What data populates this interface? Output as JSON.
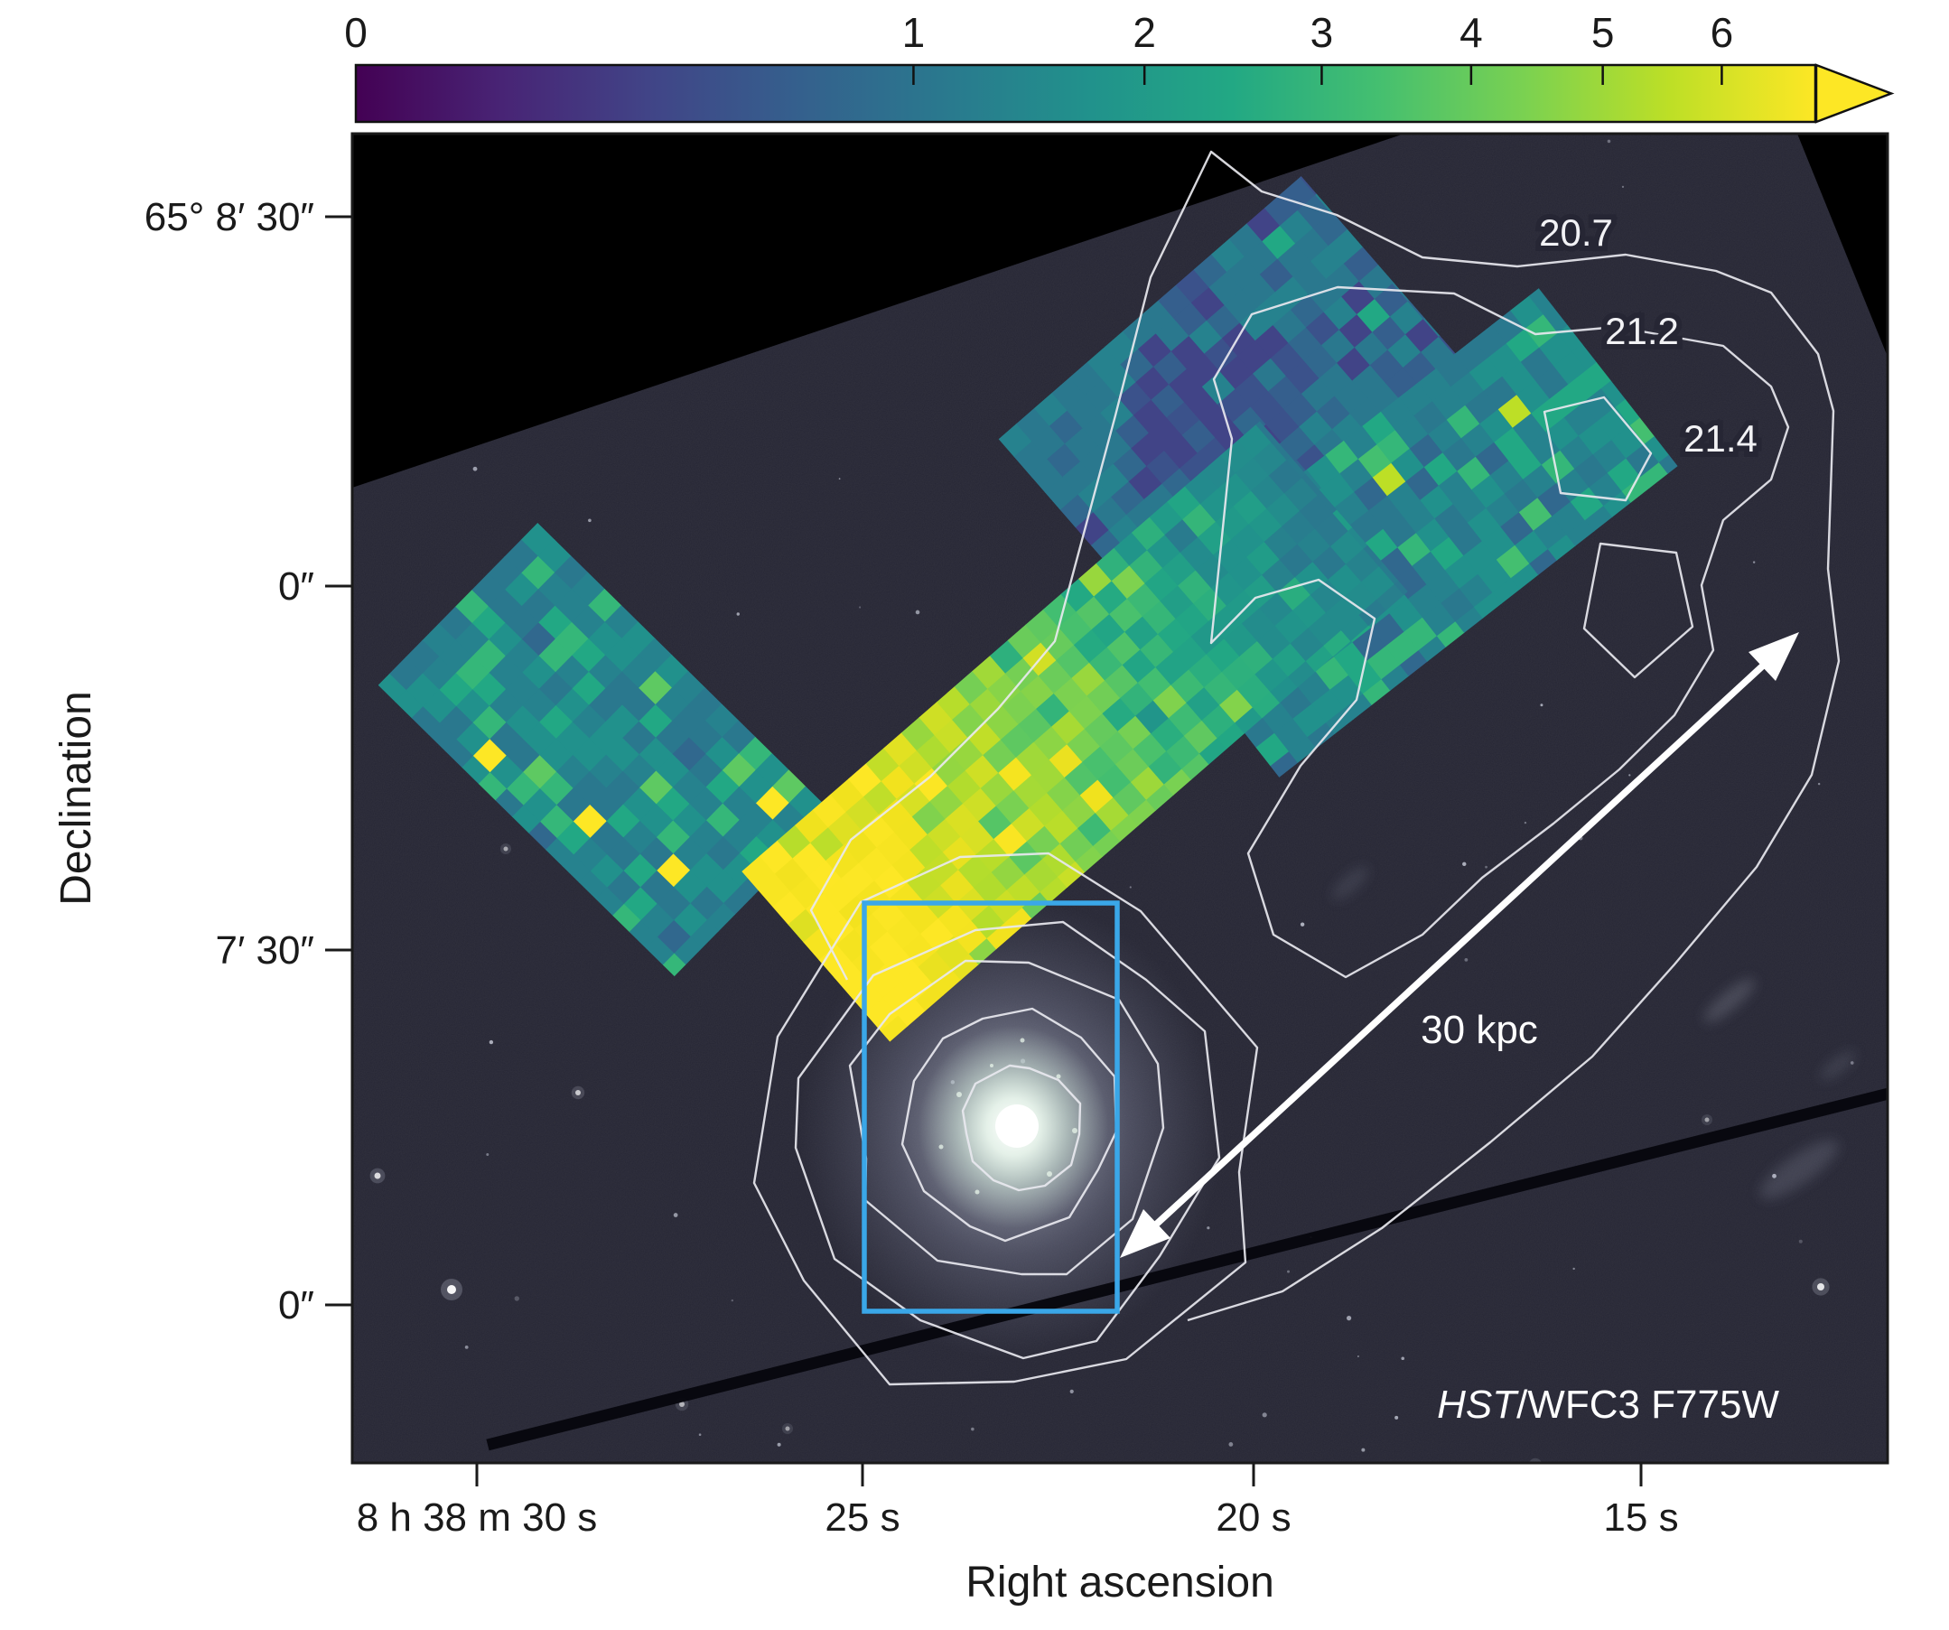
{
  "figure": {
    "colorbar": {
      "tick_labels": [
        "0",
        "1",
        "2",
        "3",
        "4",
        "5",
        "6"
      ],
      "values": [
        0,
        1,
        2,
        3,
        4,
        5,
        6
      ],
      "vmax": 6.85,
      "scale": "sqrt",
      "colormap": "viridis"
    },
    "y_axis": {
      "label": "Declination",
      "tick_labels": [
        "65° 8′ 30″",
        "0″",
        "7′ 30″",
        "0″"
      ]
    },
    "x_axis": {
      "label": "Right ascension",
      "tick_labels": [
        "8 h 38 m 30 s",
        "25 s",
        "20 s",
        "15 s"
      ]
    },
    "annotations": {
      "contour_labels": [
        "20.7",
        "21.2",
        "21.4"
      ],
      "scale_bar": "30 kpc",
      "instrument_italic": "HST",
      "instrument_rest": "/WFC3 F775W"
    },
    "colors": {
      "zoom_box": "#3aa7e8",
      "contour": "#e9e9ef",
      "sky_field": "#262634",
      "outside_field": "#000000"
    }
  },
  "chart_data": {
    "type": "heatmap",
    "title": "",
    "xlabel": "Right ascension",
    "ylabel": "Declination",
    "x_tick_labels": [
      "8 h 38 m 30 s",
      "25 s",
      "20 s",
      "15 s"
    ],
    "y_tick_labels": [
      "65° 8′ 30″",
      "0″",
      "7′ 30″",
      "0″"
    ],
    "x_range_right_ascension": [
      "8 h 38 m 31.6 s",
      "8 h 38 m 11.7 s"
    ],
    "y_range_declination": [
      "65° 6′ 49″",
      "65° 8′ 37″"
    ],
    "colorbar": {
      "ticks": [
        0,
        1,
        2,
        3,
        4,
        5,
        6
      ],
      "vmin": 0,
      "vmax": 6.85,
      "scale": "sqrt",
      "colormap": "viridis",
      "legend_position": "top"
    },
    "contour_levels": [
      20.7,
      21.2,
      21.4
    ],
    "overlays": {
      "ifu_pointings": [
        {
          "name": "pointing-west",
          "appearance": "teal with green speckles",
          "approx_value_range": [
            1,
            3
          ]
        },
        {
          "name": "pointing-north",
          "appearance": "blue-teal, faintest of the four",
          "approx_value_range": [
            0.5,
            2
          ]
        },
        {
          "name": "pointing-northeast",
          "appearance": "teal with green speckles",
          "approx_value_range": [
            1,
            3
          ]
        },
        {
          "name": "pointing-tail",
          "appearance": "bright yellow at SW end grading to teal at NE end",
          "approx_value_range": [
            1.5,
            6.8
          ]
        }
      ],
      "zoom_box_color": "#3aa7e8",
      "scale_bar_label": "30 kpc",
      "instrument_label": "HST/WFC3 F775W",
      "contour_label_values": [
        "20.7",
        "21.2",
        "21.4"
      ],
      "galaxy": {
        "description": "bright spiral galaxy inside blue zoom box, surrounded by 5 nested isophote contours"
      }
    }
  }
}
